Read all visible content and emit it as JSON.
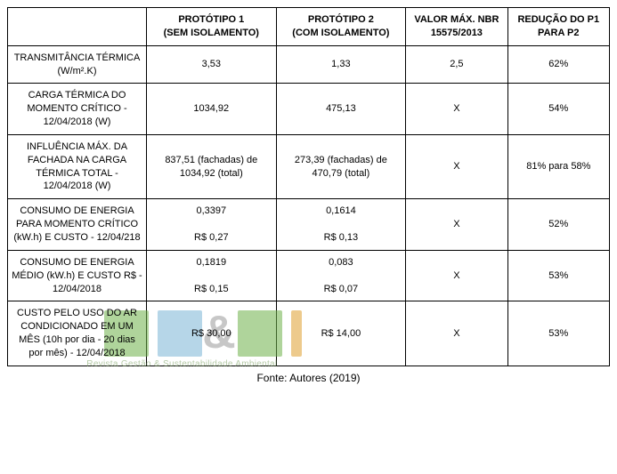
{
  "table": {
    "columns": [
      "",
      "PROTÓTIPO 1\n(SEM ISOLAMENTO)",
      "PROTÓTIPO 2\n(COM ISOLAMENTO)",
      "VALOR MÁX. NBR 15575/2013",
      "REDUÇÃO DO P1 PARA P2"
    ],
    "rows": [
      {
        "label": "TRANSMITÂNCIA TÉRMICA (W/m².K)",
        "p1": "3,53",
        "p2": "1,33",
        "nbr": "2,5",
        "red": "62%"
      },
      {
        "label": "CARGA TÉRMICA DO MOMENTO CRÍTICO - 12/04/2018 (W)",
        "p1": "1034,92",
        "p2": "475,13",
        "nbr": "X",
        "red": "54%"
      },
      {
        "label": "INFLUÊNCIA MÁX. DA FACHADA NA CARGA TÉRMICA TOTAL - 12/04/2018 (W)",
        "p1": "837,51 (fachadas) de 1034,92 (total)",
        "p2": "273,39 (fachadas) de 470,79 (total)",
        "nbr": "X",
        "red": "81% para 58%"
      },
      {
        "label": "CONSUMO DE ENERGIA PARA MOMENTO CRÍTICO (kW.h) E CUSTO - 12/04/218",
        "p1_a": "0,3397",
        "p1_b": "R$ 0,27",
        "p2_a": "0,1614",
        "p2_b": "R$ 0,13",
        "nbr": "X",
        "red": "52%"
      },
      {
        "label": "CONSUMO DE ENERGIA MÉDIO (kW.h) E CUSTO R$ - 12/04/2018",
        "p1_a": "0,1819",
        "p1_b": "R$ 0,15",
        "p2_a": "0,083",
        "p2_b": "R$ 0,07",
        "nbr": "X",
        "red": "53%"
      },
      {
        "label": "CUSTO PELO USO DO AR CONDICIONADO EM UM MÊS (10h por dia - 20 dias por mês) - 12/04/2018",
        "p1": "R$ 30,00",
        "p2": "R$ 14,00",
        "nbr": "X",
        "red": "53%"
      }
    ],
    "border_color": "#000000",
    "background_color": "#ffffff",
    "font_size_pt": 8,
    "header_font_weight": "bold"
  },
  "caption": "Fonte: Autores (2019)",
  "watermark": {
    "text_symbol": "&",
    "subtitle": "Revista Gestão & Sustentabilidade Ambiental",
    "colors": {
      "green": "#6fb24a",
      "blue": "#7cb6d6",
      "orange": "#e0a030",
      "grey": "#9a9a9a",
      "sub": "#7aa060"
    }
  }
}
